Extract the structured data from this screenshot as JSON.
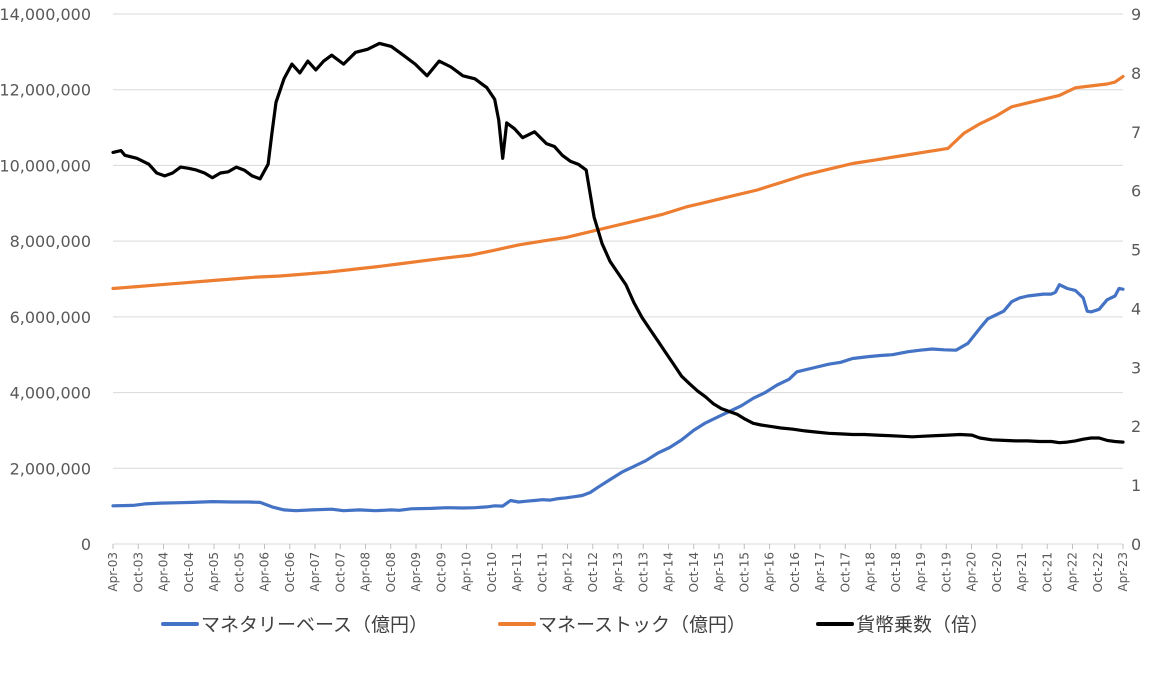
{
  "chart_data": {
    "type": "line",
    "title": "",
    "xlabel": "",
    "ylabel": "",
    "x_tick_labels": [
      "Apr-03",
      "Oct-03",
      "Apr-04",
      "Oct-04",
      "Apr-05",
      "Oct-05",
      "Apr-06",
      "Oct-06",
      "Apr-07",
      "Oct-07",
      "Apr-08",
      "Oct-08",
      "Apr-09",
      "Oct-09",
      "Apr-10",
      "Oct-10",
      "Apr-11",
      "Oct-11",
      "Apr-12",
      "Oct-12",
      "Apr-13",
      "Oct-13",
      "Apr-14",
      "Oct-14",
      "Apr-15",
      "Oct-15",
      "Apr-16",
      "Oct-16",
      "Apr-17",
      "Oct-17",
      "Apr-18",
      "Oct-18",
      "Apr-19",
      "Oct-19",
      "Apr-20",
      "Oct-20",
      "Apr-21",
      "Oct-21",
      "Apr-22",
      "Oct-22",
      "Apr-23"
    ],
    "y_left": {
      "min": 0,
      "max": 14000000,
      "ticks": [
        "0",
        "2,000,000",
        "4,000,000",
        "6,000,000",
        "8,000,000",
        "10,000,000",
        "12,000,000",
        "14,000,000"
      ]
    },
    "y_right": {
      "min": 0,
      "max": 9,
      "ticks": [
        "0",
        "1",
        "2",
        "3",
        "4",
        "5",
        "6",
        "7",
        "8",
        "9"
      ]
    },
    "grid": "horizontal",
    "legend_position": "bottom",
    "series": [
      {
        "name": "マネタリーベース（億円）",
        "axis": "left",
        "color": "#4472C4",
        "points": [
          [
            0,
            1010000
          ],
          [
            5,
            1020000
          ],
          [
            8,
            1060000
          ],
          [
            12,
            1080000
          ],
          [
            17,
            1090000
          ],
          [
            20,
            1100000
          ],
          [
            25,
            1120000
          ],
          [
            30,
            1110000
          ],
          [
            34,
            1110000
          ],
          [
            37,
            1100000
          ],
          [
            40,
            980000
          ],
          [
            43,
            900000
          ],
          [
            46,
            880000
          ],
          [
            50,
            900000
          ],
          [
            55,
            920000
          ],
          [
            58,
            880000
          ],
          [
            62,
            900000
          ],
          [
            66,
            880000
          ],
          [
            70,
            900000
          ],
          [
            72,
            890000
          ],
          [
            75,
            930000
          ],
          [
            80,
            940000
          ],
          [
            84,
            960000
          ],
          [
            88,
            950000
          ],
          [
            91,
            960000
          ],
          [
            94,
            980000
          ],
          [
            96,
            1010000
          ],
          [
            98,
            1000000
          ],
          [
            100,
            1150000
          ],
          [
            102,
            1110000
          ],
          [
            104,
            1130000
          ],
          [
            106,
            1150000
          ],
          [
            108,
            1170000
          ],
          [
            110,
            1160000
          ],
          [
            112,
            1200000
          ],
          [
            114,
            1220000
          ],
          [
            116,
            1250000
          ],
          [
            118,
            1280000
          ],
          [
            119,
            1320000
          ],
          [
            120,
            1360000
          ],
          [
            122,
            1500000
          ],
          [
            125,
            1700000
          ],
          [
            128,
            1900000
          ],
          [
            131,
            2050000
          ],
          [
            134,
            2200000
          ],
          [
            137,
            2400000
          ],
          [
            140,
            2550000
          ],
          [
            143,
            2750000
          ],
          [
            146,
            3000000
          ],
          [
            149,
            3200000
          ],
          [
            152,
            3350000
          ],
          [
            155,
            3500000
          ],
          [
            158,
            3650000
          ],
          [
            161,
            3850000
          ],
          [
            164,
            4000000
          ],
          [
            167,
            4200000
          ],
          [
            170,
            4350000
          ],
          [
            172,
            4550000
          ],
          [
            176,
            4650000
          ],
          [
            180,
            4750000
          ],
          [
            183,
            4800000
          ],
          [
            186,
            4900000
          ],
          [
            190,
            4950000
          ],
          [
            193,
            4980000
          ],
          [
            196,
            5000000
          ],
          [
            200,
            5080000
          ],
          [
            203,
            5120000
          ],
          [
            206,
            5150000
          ],
          [
            209,
            5130000
          ],
          [
            212,
            5120000
          ],
          [
            215,
            5300000
          ],
          [
            218,
            5700000
          ],
          [
            220,
            5950000
          ],
          [
            222,
            6050000
          ],
          [
            224,
            6150000
          ],
          [
            226,
            6400000
          ],
          [
            230,
            6550000
          ],
          [
            234,
            6600000
          ],
          [
            236,
            6600000
          ],
          [
            228,
            6500000
          ],
          [
            237,
            6650000
          ],
          [
            238,
            6850000
          ],
          [
            240,
            6750000
          ],
          [
            242,
            6700000
          ],
          [
            244,
            6500000
          ],
          [
            245,
            6150000
          ],
          [
            246,
            6130000
          ],
          [
            248,
            6200000
          ],
          [
            250,
            6450000
          ],
          [
            252,
            6550000
          ],
          [
            253,
            6750000
          ],
          [
            254,
            6730000
          ]
        ]
      },
      {
        "name": "マネーストック（億円）",
        "axis": "left",
        "color": "#ED7D31",
        "points": [
          [
            0,
            6750000
          ],
          [
            6,
            6800000
          ],
          [
            12,
            6850000
          ],
          [
            18,
            6900000
          ],
          [
            24,
            6950000
          ],
          [
            30,
            7000000
          ],
          [
            36,
            7050000
          ],
          [
            42,
            7080000
          ],
          [
            48,
            7130000
          ],
          [
            54,
            7180000
          ],
          [
            60,
            7250000
          ],
          [
            66,
            7320000
          ],
          [
            72,
            7400000
          ],
          [
            78,
            7480000
          ],
          [
            84,
            7560000
          ],
          [
            90,
            7630000
          ],
          [
            96,
            7760000
          ],
          [
            102,
            7900000
          ],
          [
            108,
            8000000
          ],
          [
            114,
            8100000
          ],
          [
            120,
            8250000
          ],
          [
            126,
            8400000
          ],
          [
            132,
            8550000
          ],
          [
            138,
            8700000
          ],
          [
            144,
            8900000
          ],
          [
            150,
            9050000
          ],
          [
            156,
            9200000
          ],
          [
            162,
            9350000
          ],
          [
            168,
            9550000
          ],
          [
            174,
            9750000
          ],
          [
            180,
            9900000
          ],
          [
            186,
            10050000
          ],
          [
            192,
            10150000
          ],
          [
            198,
            10250000
          ],
          [
            204,
            10350000
          ],
          [
            210,
            10450000
          ],
          [
            214,
            10850000
          ],
          [
            218,
            11100000
          ],
          [
            222,
            11300000
          ],
          [
            226,
            11550000
          ],
          [
            232,
            11700000
          ],
          [
            238,
            11850000
          ],
          [
            242,
            12050000
          ],
          [
            246,
            12100000
          ],
          [
            250,
            12150000
          ],
          [
            252,
            12200000
          ],
          [
            254,
            12350000
          ]
        ]
      },
      {
        "name": "貨幣乗数（倍）",
        "axis": "right",
        "color": "#000000",
        "points": [
          [
            0,
            6.65
          ],
          [
            2,
            6.68
          ],
          [
            3,
            6.6
          ],
          [
            6,
            6.55
          ],
          [
            9,
            6.45
          ],
          [
            11,
            6.3
          ],
          [
            13,
            6.25
          ],
          [
            15,
            6.3
          ],
          [
            17,
            6.4
          ],
          [
            19,
            6.38
          ],
          [
            21,
            6.35
          ],
          [
            23,
            6.3
          ],
          [
            25,
            6.22
          ],
          [
            27,
            6.3
          ],
          [
            29,
            6.32
          ],
          [
            31,
            6.4
          ],
          [
            33,
            6.35
          ],
          [
            35,
            6.25
          ],
          [
            37,
            6.2
          ],
          [
            39,
            6.45
          ],
          [
            40,
            7.0
          ],
          [
            41,
            7.5
          ],
          [
            43,
            7.9
          ],
          [
            45,
            8.15
          ],
          [
            47,
            8.0
          ],
          [
            49,
            8.2
          ],
          [
            51,
            8.05
          ],
          [
            53,
            8.2
          ],
          [
            55,
            8.3
          ],
          [
            58,
            8.15
          ],
          [
            61,
            8.35
          ],
          [
            64,
            8.4
          ],
          [
            67,
            8.5
          ],
          [
            70,
            8.45
          ],
          [
            73,
            8.3
          ],
          [
            76,
            8.15
          ],
          [
            79,
            7.95
          ],
          [
            82,
            8.2
          ],
          [
            85,
            8.1
          ],
          [
            88,
            7.95
          ],
          [
            91,
            7.9
          ],
          [
            93,
            7.8
          ],
          [
            94,
            7.75
          ],
          [
            96,
            7.55
          ],
          [
            97,
            7.2
          ],
          [
            98,
            6.55
          ],
          [
            99,
            7.15
          ],
          [
            101,
            7.05
          ],
          [
            103,
            6.9
          ],
          [
            106,
            7.0
          ],
          [
            109,
            6.8
          ],
          [
            111,
            6.75
          ],
          [
            113,
            6.6
          ],
          [
            115,
            6.5
          ],
          [
            117,
            6.45
          ],
          [
            119,
            6.35
          ],
          [
            121,
            5.55
          ],
          [
            123,
            5.1
          ],
          [
            125,
            4.8
          ],
          [
            127,
            4.6
          ],
          [
            129,
            4.4
          ],
          [
            131,
            4.1
          ],
          [
            133,
            3.85
          ],
          [
            135,
            3.65
          ],
          [
            137,
            3.45
          ],
          [
            139,
            3.25
          ],
          [
            141,
            3.05
          ],
          [
            143,
            2.85
          ],
          [
            145,
            2.72
          ],
          [
            147,
            2.6
          ],
          [
            149,
            2.5
          ],
          [
            151,
            2.38
          ],
          [
            153,
            2.3
          ],
          [
            155,
            2.25
          ],
          [
            157,
            2.2
          ],
          [
            159,
            2.12
          ],
          [
            161,
            2.05
          ],
          [
            163,
            2.02
          ],
          [
            165,
            2.0
          ],
          [
            168,
            1.97
          ],
          [
            171,
            1.95
          ],
          [
            174,
            1.92
          ],
          [
            177,
            1.9
          ],
          [
            180,
            1.88
          ],
          [
            183,
            1.87
          ],
          [
            186,
            1.86
          ],
          [
            189,
            1.86
          ],
          [
            192,
            1.85
          ],
          [
            195,
            1.84
          ],
          [
            198,
            1.83
          ],
          [
            201,
            1.82
          ],
          [
            204,
            1.83
          ],
          [
            207,
            1.84
          ],
          [
            210,
            1.85
          ],
          [
            213,
            1.86
          ],
          [
            216,
            1.85
          ],
          [
            218,
            1.8
          ],
          [
            221,
            1.77
          ],
          [
            224,
            1.76
          ],
          [
            227,
            1.75
          ],
          [
            230,
            1.75
          ],
          [
            233,
            1.74
          ],
          [
            236,
            1.74
          ],
          [
            238,
            1.72
          ],
          [
            240,
            1.73
          ],
          [
            242,
            1.75
          ],
          [
            244,
            1.78
          ],
          [
            246,
            1.8
          ],
          [
            248,
            1.8
          ],
          [
            250,
            1.76
          ],
          [
            252,
            1.74
          ],
          [
            254,
            1.73
          ]
        ]
      }
    ]
  },
  "legend": [
    {
      "label": "マネタリーベース（億円）",
      "color": "#4472C4"
    },
    {
      "label": "マネーストック（億円）",
      "color": "#ED7D31"
    },
    {
      "label": "貨幣乗数（倍）",
      "color": "#000000"
    }
  ]
}
